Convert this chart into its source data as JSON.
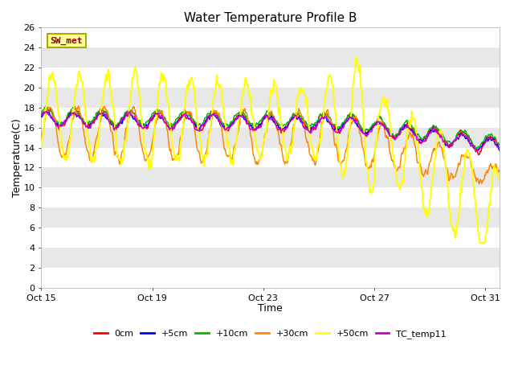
{
  "title": "Water Temperature Profile B",
  "xlabel": "Time",
  "ylabel": "Temperature(C)",
  "ylim": [
    0,
    26
  ],
  "yticks": [
    0,
    2,
    4,
    6,
    8,
    10,
    12,
    14,
    16,
    18,
    20,
    22,
    24,
    26
  ],
  "xtick_labels": [
    "Oct 15",
    "Oct 19",
    "Oct 23",
    "Oct 27",
    "Oct 31"
  ],
  "xtick_positions": [
    0,
    4,
    8,
    12,
    16
  ],
  "series": {
    "0cm": {
      "color": "#ff0000",
      "linewidth": 1.1
    },
    "+5cm": {
      "color": "#0000ff",
      "linewidth": 1.1
    },
    "+10cm": {
      "color": "#00bb00",
      "linewidth": 1.1
    },
    "+30cm": {
      "color": "#ff8800",
      "linewidth": 1.1
    },
    "+50cm": {
      "color": "#ffff00",
      "linewidth": 1.4
    },
    "TC_temp11": {
      "color": "#cc00cc",
      "linewidth": 1.1
    }
  },
  "annotation": {
    "text": "SW_met",
    "fontsize": 8,
    "text_color": "#880000",
    "box_facecolor": "#ffff99",
    "box_edgecolor": "#aaaa00"
  },
  "plot_bg_color": "#ffffff",
  "grid_color": "#cccccc",
  "n_points": 800,
  "band_colors": [
    "#ffffff",
    "#e8e8e8"
  ]
}
